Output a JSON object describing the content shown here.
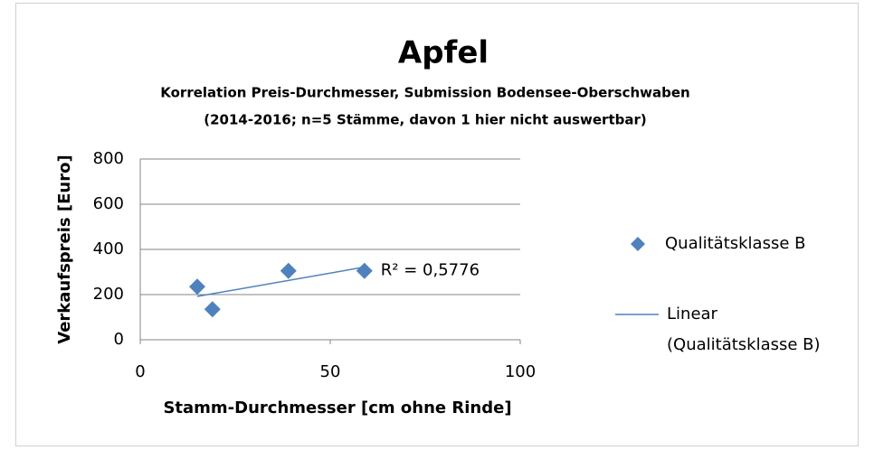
{
  "chart_data": {
    "type": "scatter",
    "title": "Apfel",
    "subtitle": [
      "Korrelation Preis-Durchmesser, Submission Bodensee-Oberschwaben",
      "(2014-2016; n=5 Stämme, davon 1 hier nicht auswertbar)"
    ],
    "x_label": "Stamm-Durchmesser [cm ohne Rinde]",
    "y_label": "Verkaufspreis [Euro]",
    "series": [
      {
        "name": "Qualitätsklasse B",
        "color": "#4f81bd",
        "x": [
          15,
          19,
          39,
          59
        ],
        "values": [
          235,
          135,
          305,
          305
        ]
      }
    ],
    "trendline": {
      "name_lines": [
        "Linear",
        "(Qualitätsklasse B)"
      ],
      "color": "#4f81bd",
      "r2_label": "R² = 0,5776"
    },
    "xlim": [
      0,
      100
    ],
    "xticks": [
      0,
      50,
      100
    ],
    "ylim": [
      0,
      800
    ],
    "yticks": [
      0,
      200,
      400,
      600,
      800
    ],
    "grid": true,
    "legend": "right"
  }
}
